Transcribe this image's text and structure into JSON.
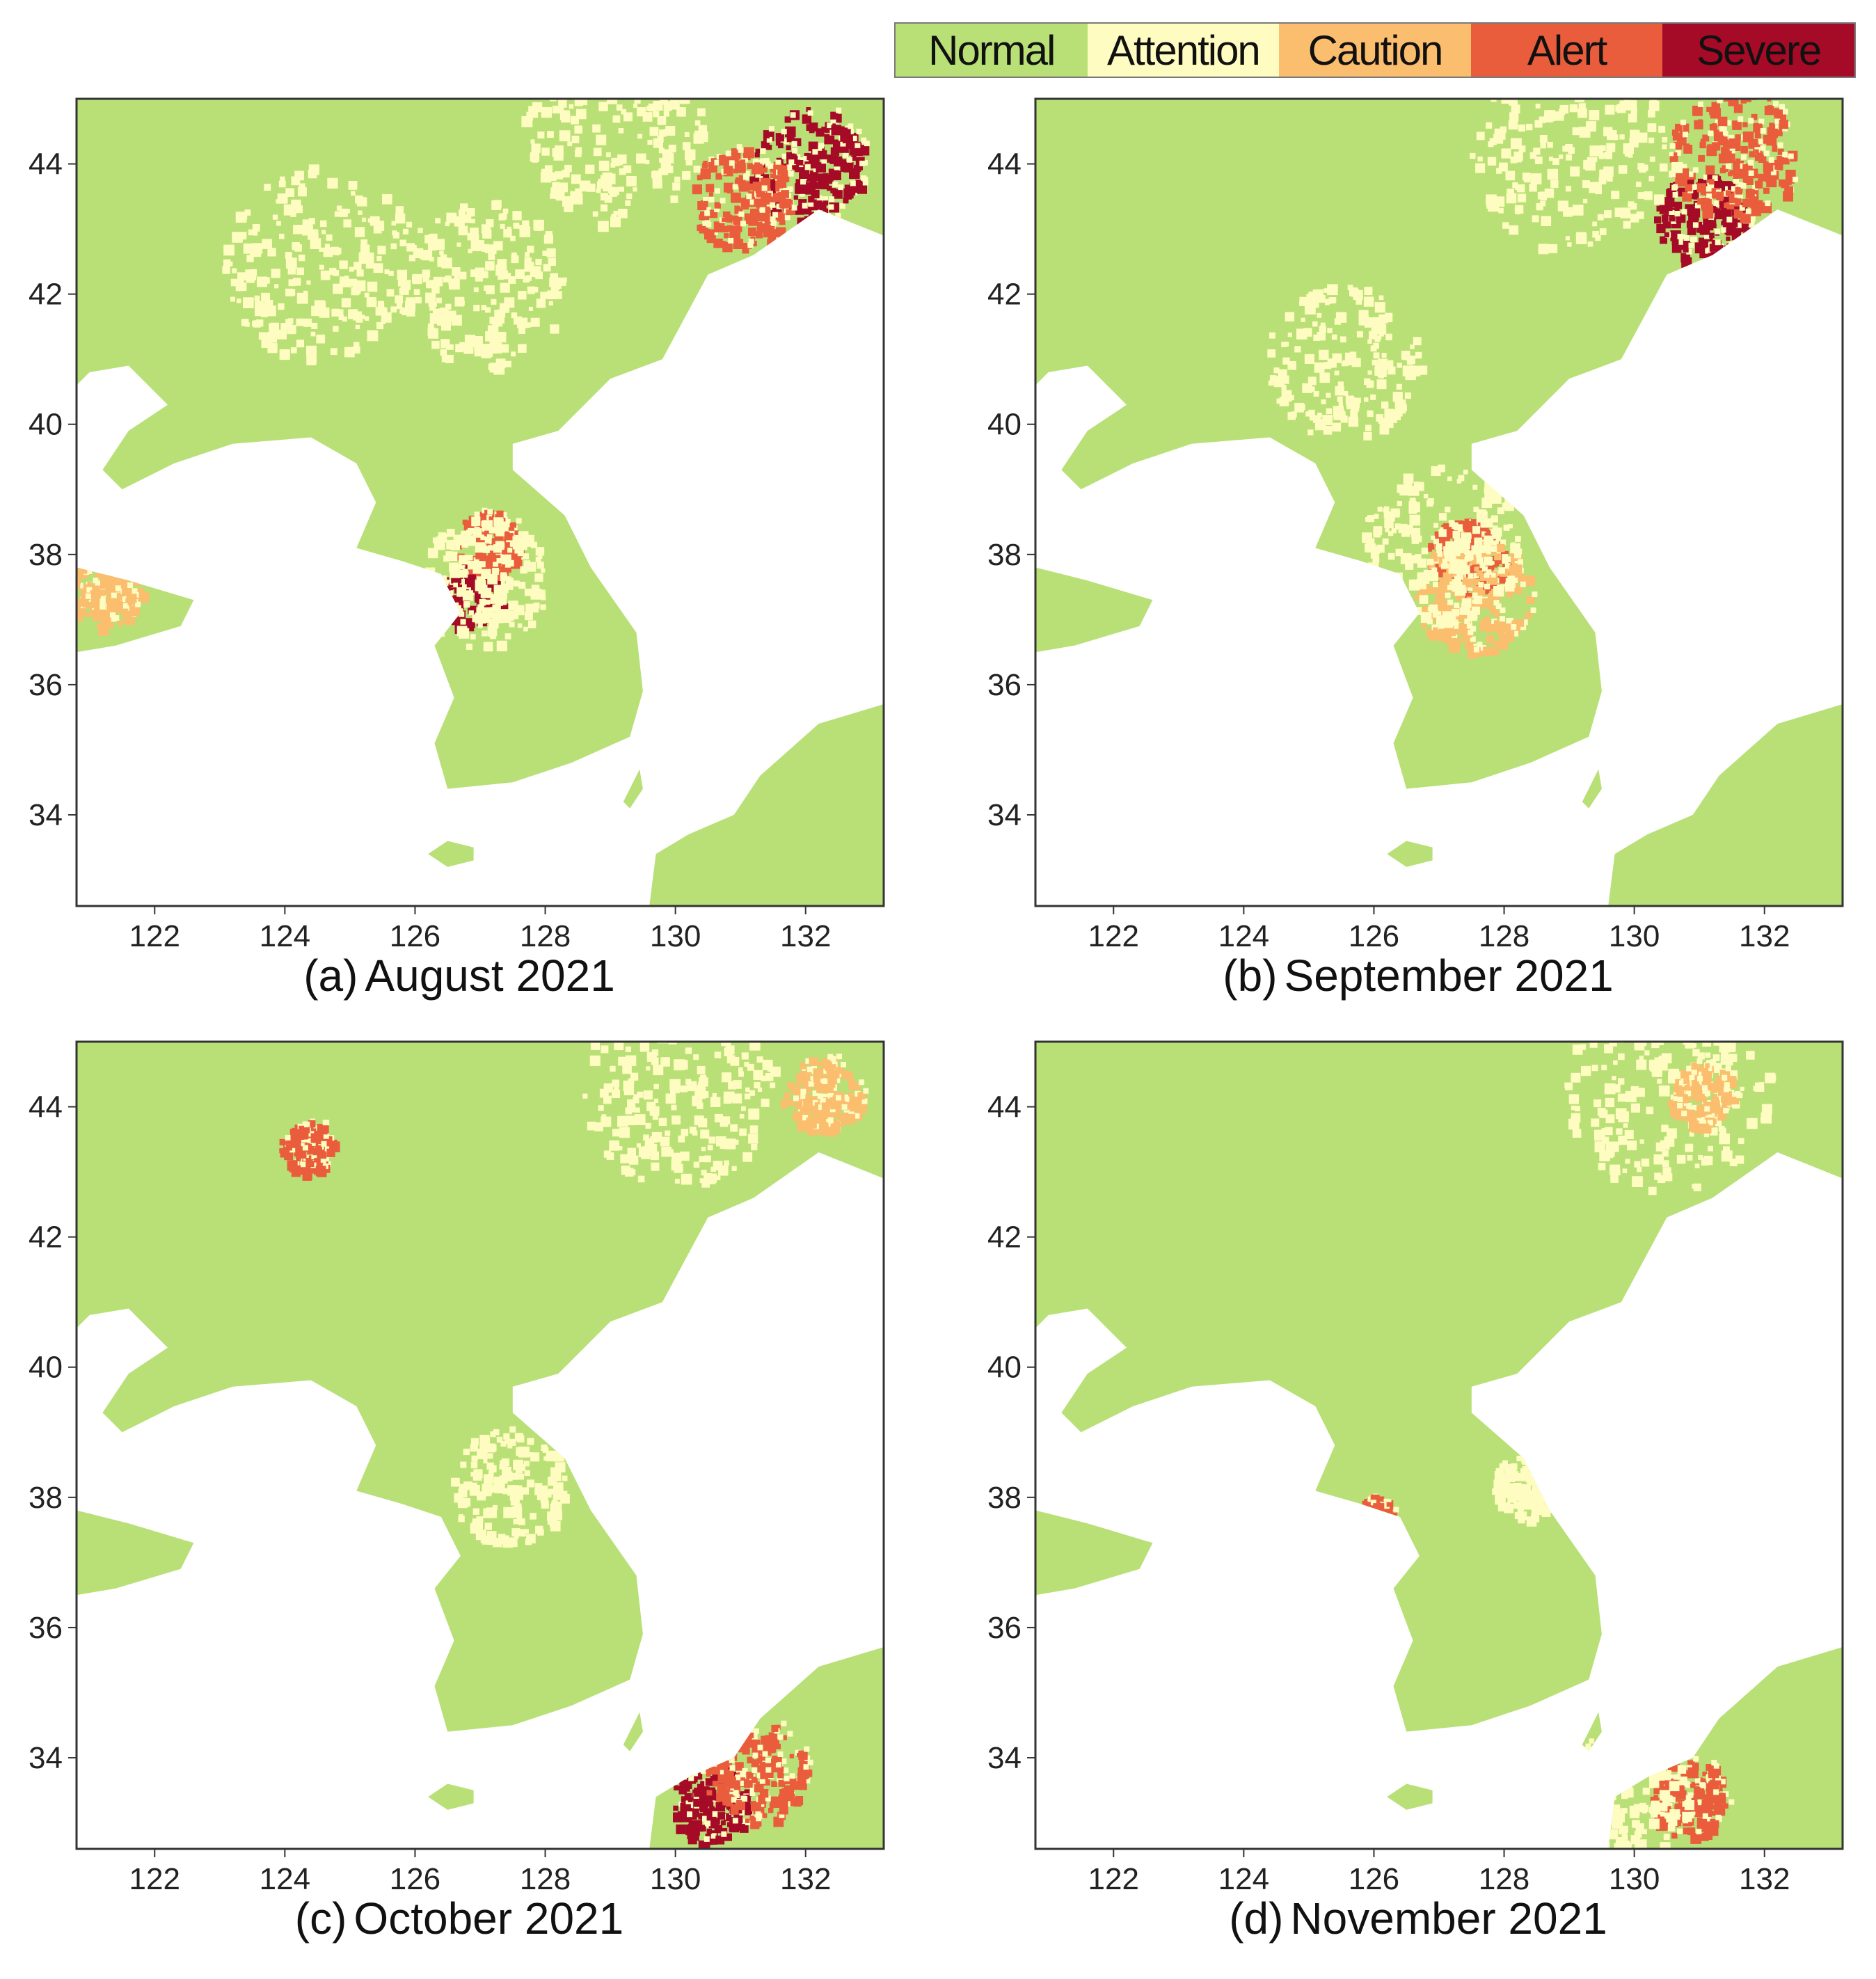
{
  "legend": {
    "items": [
      {
        "label": "Normal",
        "color": "#b8e076"
      },
      {
        "label": "Attention",
        "color": "#fefcc0"
      },
      {
        "label": "Caution",
        "color": "#fbbd6e"
      },
      {
        "label": "Alert",
        "color": "#e95d3c"
      },
      {
        "label": "Severe",
        "color": "#a50b27"
      }
    ]
  },
  "colors": {
    "land_normal": "#b8e076",
    "attention": "#fefcc0",
    "caution": "#fbbd6e",
    "alert": "#e95d3c",
    "severe": "#a50b27",
    "sea": "#ffffff",
    "frame": "#333333"
  },
  "axes": {
    "lon_range": [
      120.8,
      133.2
    ],
    "lat_range": [
      32.6,
      45.0
    ],
    "x_ticks": [
      "122",
      "124",
      "126",
      "128",
      "130",
      "132"
    ],
    "y_ticks": [
      "44",
      "42",
      "40",
      "38",
      "36",
      "34"
    ]
  },
  "panels": [
    {
      "id": "a",
      "prefix": "(a)",
      "title": "August 2021",
      "hotspots": [
        {
          "lon": 132.0,
          "lat": 44.0,
          "level": "severe",
          "radius": 0.9
        },
        {
          "lon": 131.0,
          "lat": 43.5,
          "level": "alert",
          "radius": 0.8
        },
        {
          "lon": 129.0,
          "lat": 44.5,
          "level": "attention",
          "radius": 1.4
        },
        {
          "lon": 126.8,
          "lat": 37.4,
          "level": "severe",
          "radius": 0.5
        },
        {
          "lon": 127.1,
          "lat": 38.2,
          "level": "alert",
          "radius": 0.5
        },
        {
          "lon": 127.0,
          "lat": 37.6,
          "level": "attention",
          "radius": 1.0
        },
        {
          "lon": 121.2,
          "lat": 37.5,
          "level": "caution",
          "radius": 0.6
        },
        {
          "lon": 124.5,
          "lat": 42.5,
          "level": "attention",
          "radius": 1.5
        },
        {
          "lon": 127.0,
          "lat": 42.2,
          "level": "attention",
          "radius": 1.3
        }
      ]
    },
    {
      "id": "b",
      "prefix": "(b)",
      "title": "September 2021",
      "hotspots": [
        {
          "lon": 131.0,
          "lat": 43.2,
          "level": "severe",
          "radius": 0.7
        },
        {
          "lon": 131.5,
          "lat": 44.2,
          "level": "alert",
          "radius": 1.0
        },
        {
          "lon": 129.0,
          "lat": 44.3,
          "level": "attention",
          "radius": 1.6
        },
        {
          "lon": 127.4,
          "lat": 38.0,
          "level": "alert",
          "radius": 0.6
        },
        {
          "lon": 127.5,
          "lat": 37.4,
          "level": "caution",
          "radius": 0.9
        },
        {
          "lon": 127.0,
          "lat": 38.2,
          "level": "attention",
          "radius": 1.2
        },
        {
          "lon": 125.5,
          "lat": 41.0,
          "level": "attention",
          "radius": 1.2
        }
      ]
    },
    {
      "id": "c",
      "prefix": "(c)",
      "title": "October 2021",
      "hotspots": [
        {
          "lon": 130.5,
          "lat": 33.3,
          "level": "severe",
          "radius": 0.6
        },
        {
          "lon": 131.2,
          "lat": 33.8,
          "level": "alert",
          "radius": 0.8
        },
        {
          "lon": 132.2,
          "lat": 44.2,
          "level": "caution",
          "radius": 0.6
        },
        {
          "lon": 130.0,
          "lat": 44.3,
          "level": "attention",
          "radius": 1.5
        },
        {
          "lon": 124.3,
          "lat": 43.4,
          "level": "alert",
          "radius": 0.4
        },
        {
          "lon": 127.4,
          "lat": 38.2,
          "level": "attention",
          "radius": 0.9
        }
      ]
    },
    {
      "id": "d",
      "prefix": "(d)",
      "title": "November 2021",
      "hotspots": [
        {
          "lon": 130.8,
          "lat": 33.4,
          "level": "alert",
          "radius": 0.6
        },
        {
          "lon": 129.8,
          "lat": 33.5,
          "level": "attention",
          "radius": 1.0
        },
        {
          "lon": 130.5,
          "lat": 44.3,
          "level": "attention",
          "radius": 1.6
        },
        {
          "lon": 131.0,
          "lat": 44.2,
          "level": "caution",
          "radius": 0.5
        },
        {
          "lon": 126.0,
          "lat": 37.8,
          "level": "alert",
          "radius": 0.25
        },
        {
          "lon": 128.3,
          "lat": 38.2,
          "level": "attention",
          "radius": 0.5
        }
      ]
    }
  ]
}
